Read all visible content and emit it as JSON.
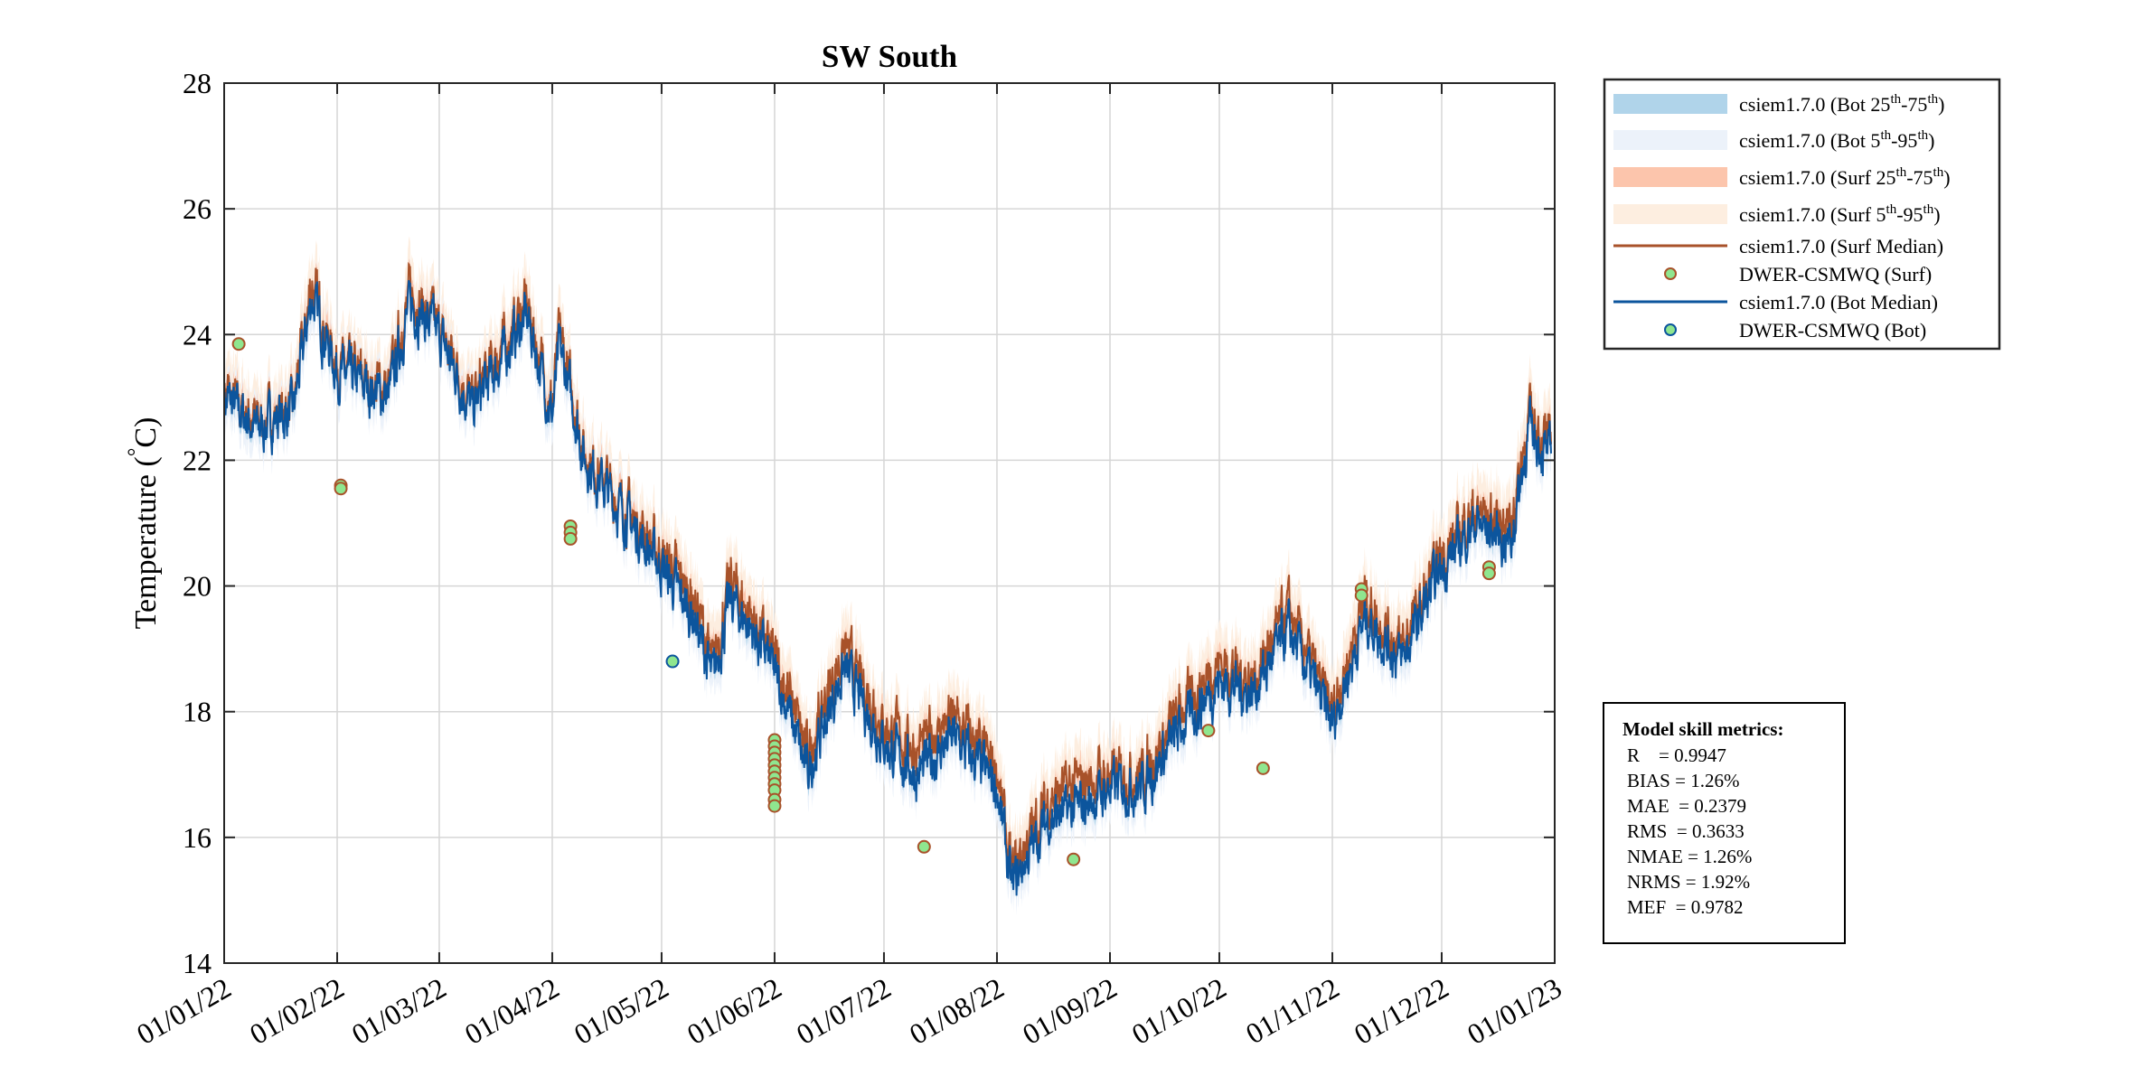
{
  "chart_data": {
    "type": "line",
    "title": "SW South",
    "ylabel": "Temperature (°C)",
    "ylabel_parts": {
      "main": "Temperature (",
      "sup": "°",
      "unit": "C)"
    },
    "xlabel": "",
    "ylim": [
      14,
      28
    ],
    "xlim": [
      "2022-01-01",
      "2023-01-01"
    ],
    "grid": true,
    "yticks": [
      "14",
      "16",
      "18",
      "20",
      "22",
      "24",
      "26",
      "28"
    ],
    "xticks": [
      {
        "date": "2022-01-01",
        "label": "01/01/22"
      },
      {
        "date": "2022-02-01",
        "label": "01/02/22"
      },
      {
        "date": "2022-03-01",
        "label": "01/03/22"
      },
      {
        "date": "2022-04-01",
        "label": "01/04/22"
      },
      {
        "date": "2022-05-01",
        "label": "01/05/22"
      },
      {
        "date": "2022-06-01",
        "label": "01/06/22"
      },
      {
        "date": "2022-07-01",
        "label": "01/07/22"
      },
      {
        "date": "2022-08-01",
        "label": "01/08/22"
      },
      {
        "date": "2022-09-01",
        "label": "01/09/22"
      },
      {
        "date": "2022-10-01",
        "label": "01/10/22"
      },
      {
        "date": "2022-11-01",
        "label": "01/11/22"
      },
      {
        "date": "2022-12-01",
        "label": "01/12/22"
      },
      {
        "date": "2023-01-01",
        "label": "01/01/23"
      }
    ],
    "legend_position": "outside-top-right",
    "legend": [
      {
        "label": "csiem1.7.0 (Bot 25th-75th)",
        "parts": [
          "csiem1.7.0 (Bot 25",
          "th",
          "-75",
          "th",
          ")"
        ],
        "kind": "band",
        "color": "#b0d4ea"
      },
      {
        "label": "csiem1.7.0 (Bot 5th-95th)",
        "parts": [
          "csiem1.7.0 (Bot 5",
          "th",
          "-95",
          "th",
          ")"
        ],
        "kind": "band",
        "color": "#ecf2fa"
      },
      {
        "label": "csiem1.7.0 (Surf 25th-75th)",
        "parts": [
          "csiem1.7.0 (Surf 25",
          "th",
          "-75",
          "th",
          ")"
        ],
        "kind": "band",
        "color": "#fcc5ac"
      },
      {
        "label": "csiem1.7.0 (Surf 5th-95th)",
        "parts": [
          "csiem1.7.0 (Surf 5",
          "th",
          "-95",
          "th",
          ")"
        ],
        "kind": "band",
        "color": "#fdeee0"
      },
      {
        "label": "csiem1.7.0 (Surf Median)",
        "kind": "line",
        "color": "#a8522a"
      },
      {
        "label": "DWER-CSMWQ (Surf)",
        "kind": "marker",
        "color": "#8fe68f",
        "edge": "#a8522a"
      },
      {
        "label": "csiem1.7.0 (Bot Median)",
        "kind": "line",
        "color": "#0c559d"
      },
      {
        "label": "DWER-CSMWQ (Bot)",
        "kind": "marker",
        "color": "#8fe68f",
        "edge": "#0c559d"
      }
    ],
    "series": [
      {
        "name": "csiem1.7.0 (Bot Median)",
        "color": "#0c559d",
        "x": [
          "2022-01-01",
          "2022-01-10",
          "2022-01-20",
          "2022-01-25",
          "2022-02-01",
          "2022-02-05",
          "2022-02-15",
          "2022-02-21",
          "2022-03-01",
          "2022-03-10",
          "2022-03-20",
          "2022-03-25",
          "2022-04-01",
          "2022-04-03",
          "2022-04-10",
          "2022-04-20",
          "2022-05-01",
          "2022-05-10",
          "2022-05-15",
          "2022-05-20",
          "2022-05-30",
          "2022-06-05",
          "2022-06-10",
          "2022-06-20",
          "2022-07-01",
          "2022-07-10",
          "2022-07-20",
          "2022-08-01",
          "2022-08-05",
          "2022-08-15",
          "2022-08-25",
          "2022-09-01",
          "2022-09-10",
          "2022-09-20",
          "2022-10-01",
          "2022-10-10",
          "2022-10-20",
          "2022-11-01",
          "2022-11-10",
          "2022-11-20",
          "2022-12-01",
          "2022-12-10",
          "2022-12-20",
          "2022-12-25",
          "2022-12-31"
        ],
        "y": [
          23.0,
          22.5,
          22.8,
          24.6,
          23.4,
          23.3,
          23.0,
          24.5,
          24.0,
          22.8,
          23.8,
          24.3,
          22.7,
          23.8,
          22.0,
          21.2,
          20.3,
          19.5,
          18.5,
          19.8,
          18.9,
          18.0,
          17.0,
          18.7,
          17.5,
          17.0,
          17.6,
          16.8,
          15.2,
          16.3,
          16.5,
          16.8,
          16.8,
          17.7,
          18.5,
          18.3,
          19.3,
          17.8,
          19.5,
          18.8,
          20.3,
          21.0,
          20.7,
          22.5,
          22.0
        ]
      },
      {
        "name": "csiem1.7.0 (Surf Median)",
        "color": "#a8522a",
        "x": [
          "2022-01-01",
          "2022-01-10",
          "2022-01-20",
          "2022-01-25",
          "2022-02-01",
          "2022-02-05",
          "2022-02-15",
          "2022-02-21",
          "2022-03-01",
          "2022-03-10",
          "2022-03-20",
          "2022-03-25",
          "2022-04-01",
          "2022-04-03",
          "2022-04-10",
          "2022-04-20",
          "2022-05-01",
          "2022-05-10",
          "2022-05-15",
          "2022-05-20",
          "2022-05-30",
          "2022-06-05",
          "2022-06-10",
          "2022-06-20",
          "2022-07-01",
          "2022-07-10",
          "2022-07-20",
          "2022-08-01",
          "2022-08-05",
          "2022-08-15",
          "2022-08-25",
          "2022-09-01",
          "2022-09-10",
          "2022-09-20",
          "2022-10-01",
          "2022-10-10",
          "2022-10-20",
          "2022-11-01",
          "2022-11-10",
          "2022-11-20",
          "2022-12-01",
          "2022-12-10",
          "2022-12-20",
          "2022-12-25",
          "2022-12-31"
        ],
        "y": [
          23.1,
          22.6,
          22.9,
          24.8,
          23.5,
          23.4,
          23.1,
          24.7,
          24.1,
          22.9,
          24.0,
          24.5,
          22.8,
          24.0,
          22.1,
          21.3,
          20.5,
          19.8,
          18.7,
          20.1,
          19.1,
          18.3,
          17.3,
          19.0,
          17.8,
          17.4,
          17.9,
          17.1,
          15.4,
          16.6,
          16.9,
          17.0,
          17.0,
          18.0,
          18.8,
          18.5,
          19.6,
          18.0,
          19.8,
          19.0,
          20.5,
          21.2,
          21.0,
          22.7,
          22.2
        ]
      }
    ],
    "observations": [
      {
        "name": "DWER-CSMWQ (Surf)",
        "color": "#8fe68f",
        "edge": "#a8522a",
        "x": [
          "2022-01-05",
          "2022-02-02",
          "2022-02-02",
          "2022-04-06",
          "2022-04-06",
          "2022-04-06",
          "2022-06-01",
          "2022-06-01",
          "2022-06-01",
          "2022-06-01",
          "2022-06-01",
          "2022-06-01",
          "2022-06-01",
          "2022-06-01",
          "2022-06-01",
          "2022-06-01",
          "2022-06-01",
          "2022-07-12",
          "2022-08-22",
          "2022-09-28",
          "2022-10-13",
          "2022-11-09",
          "2022-11-09",
          "2022-12-14",
          "2022-12-14"
        ],
        "y": [
          23.85,
          21.6,
          21.55,
          20.95,
          20.85,
          20.75,
          17.55,
          17.45,
          17.35,
          17.25,
          17.15,
          17.05,
          16.95,
          16.85,
          16.75,
          16.6,
          16.5,
          15.85,
          15.65,
          17.7,
          17.1,
          19.95,
          19.85,
          20.3,
          20.2
        ]
      },
      {
        "name": "DWER-CSMWQ (Bot)",
        "color": "#8fe68f",
        "edge": "#0c559d",
        "x": [
          "2022-05-04"
        ],
        "y": [
          18.8
        ]
      }
    ],
    "metrics": {
      "title": "Model skill metrics:",
      "lines": [
        "R    = 0.9947",
        "BIAS = 1.26%",
        "MAE  = 0.2379",
        "RMS  = 0.3633",
        "NMAE = 1.26%",
        "NRMS = 1.92%",
        "MEF  = 0.9782"
      ]
    }
  }
}
